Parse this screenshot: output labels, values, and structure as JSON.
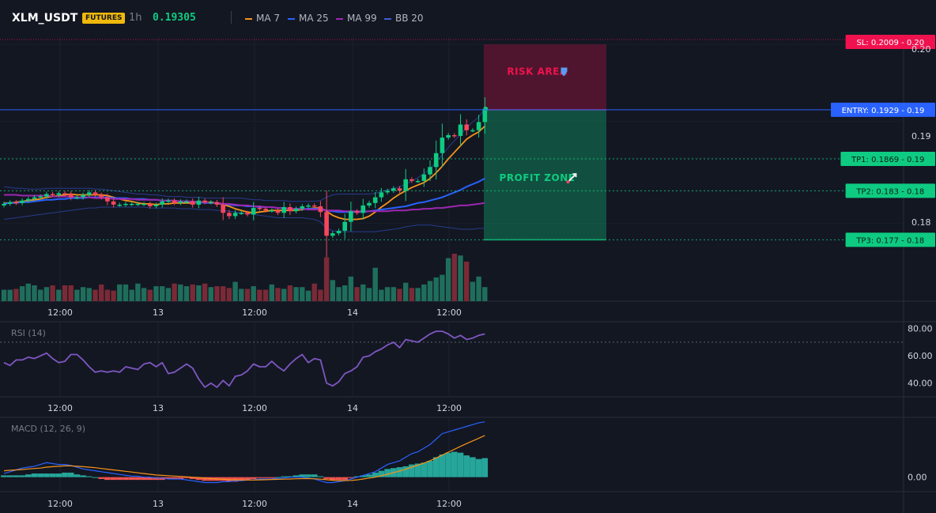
{
  "header": {
    "symbol": "XLM_USDT",
    "badge": "FUTURES",
    "timeframe": "1h",
    "last_price": "0.19305"
  },
  "legend": [
    {
      "name": "MA 7",
      "color": "#f7931a"
    },
    {
      "name": "MA 25",
      "color": "#2962ff"
    },
    {
      "name": "MA 99",
      "color": "#9c27b0"
    },
    {
      "name": "BB 20",
      "color": "#1e3a8a"
    }
  ],
  "colors": {
    "up": "#0ecb81",
    "down": "#f6465d",
    "entry": "#2962ff",
    "sl": "#f0124f",
    "tp": "#0ecb81",
    "rsi": "#7e57c2",
    "macd": "#2962ff",
    "signal": "#f7931a",
    "hist_up": "#26a69a",
    "hist_down": "#ef5350"
  },
  "chart_data": [
    {
      "type": "candlestick",
      "title": "XLM_USDT",
      "x_ticks": [
        "12:00",
        "13",
        "12:00",
        "14",
        "12:00"
      ],
      "y_ticks": [
        "0.20",
        "0.19",
        "0.19",
        "0.18",
        "0.18"
      ],
      "y_tick_values": [
        0.2009,
        0.1915,
        0.187,
        0.183,
        0.179
      ],
      "ylim": [
        0.1753,
        0.2012
      ],
      "levels": [
        {
          "label": "SL: 0.2009",
          "tick": "0.20",
          "value": 0.2009,
          "kind": "sl"
        },
        {
          "label": "ENTRY: 0.1929",
          "tick": "0.19",
          "value": 0.1929,
          "kind": "entry"
        },
        {
          "label": "TP1: 0.1869",
          "tick": "0.19",
          "value": 0.1869,
          "kind": "tp"
        },
        {
          "label": "TP2: 0.183",
          "tick": "0.18",
          "value": 0.183,
          "kind": "tp"
        },
        {
          "label": "TP3: 0.177",
          "tick": "0.18",
          "value": 0.177,
          "kind": "tp"
        }
      ],
      "zones": [
        {
          "label": "RISK AREA",
          "icon": "shield-icon",
          "from": 0.1929,
          "to": 0.2009,
          "color": "#f0124f"
        },
        {
          "label": "PROFIT ZONE",
          "icon": "rocket-icon",
          "from": 0.177,
          "to": 0.1929,
          "color": "#0ecb81"
        }
      ],
      "close": [
        0.1814,
        0.1816,
        0.1815,
        0.1818,
        0.182,
        0.1822,
        0.1823,
        0.1826,
        0.1825,
        0.1827,
        0.1826,
        0.1822,
        0.1822,
        0.1825,
        0.1828,
        0.1825,
        0.1822,
        0.1817,
        0.1813,
        0.1813,
        0.1814,
        0.1814,
        0.1814,
        0.1814,
        0.1811,
        0.1813,
        0.1817,
        0.1818,
        0.1815,
        0.1817,
        0.1817,
        0.1813,
        0.1818,
        0.1816,
        0.1816,
        0.1813,
        0.1803,
        0.1799,
        0.1803,
        0.1803,
        0.1801,
        0.1809,
        0.1808,
        0.1806,
        0.1806,
        0.1803,
        0.181,
        0.1805,
        0.1808,
        0.1811,
        0.1812,
        0.1811,
        0.1804,
        0.1775,
        0.1778,
        0.1781,
        0.1792,
        0.1805,
        0.1803,
        0.1812,
        0.1815,
        0.1822,
        0.1828,
        0.183,
        0.1833,
        0.183,
        0.1844,
        0.1842,
        0.1842,
        0.185,
        0.1859,
        0.1876,
        0.1895,
        0.1898,
        0.1897,
        0.1911,
        0.1904,
        0.1904,
        0.1914,
        0.193
      ],
      "volume": [
        0.13,
        0.13,
        0.14,
        0.17,
        0.2,
        0.18,
        0.13,
        0.16,
        0.18,
        0.13,
        0.18,
        0.18,
        0.13,
        0.16,
        0.15,
        0.13,
        0.19,
        0.13,
        0.12,
        0.19,
        0.19,
        0.13,
        0.2,
        0.15,
        0.13,
        0.17,
        0.17,
        0.15,
        0.2,
        0.19,
        0.17,
        0.19,
        0.18,
        0.2,
        0.16,
        0.17,
        0.17,
        0.15,
        0.22,
        0.14,
        0.14,
        0.17,
        0.13,
        0.13,
        0.19,
        0.15,
        0.14,
        0.18,
        0.16,
        0.16,
        0.12,
        0.2,
        0.13,
        0.5,
        0.24,
        0.16,
        0.18,
        0.28,
        0.16,
        0.19,
        0.15,
        0.38,
        0.13,
        0.16,
        0.16,
        0.14,
        0.21,
        0.15,
        0.15,
        0.19,
        0.23,
        0.27,
        0.3,
        0.49,
        0.54,
        0.52,
        0.45,
        0.22,
        0.28,
        0.16
      ],
      "series": [
        {
          "name": "MA 7",
          "values": [
            0.1815,
            0.1815,
            0.1816,
            0.1817,
            0.1818,
            0.1819,
            0.182,
            0.1822,
            0.1823,
            0.1824,
            0.1825,
            0.1826,
            0.1825,
            0.1825,
            0.1825,
            0.1825,
            0.1825,
            0.1824,
            0.1822,
            0.182,
            0.1818,
            0.1817,
            0.1815,
            0.1814,
            0.1814,
            0.1813,
            0.1814,
            0.1814,
            0.1815,
            0.1815,
            0.1815,
            0.1815,
            0.1816,
            0.1816,
            0.1816,
            0.1815,
            0.1813,
            0.1811,
            0.1808,
            0.1806,
            0.1804,
            0.1803,
            0.1804,
            0.1805,
            0.1806,
            0.1806,
            0.1806,
            0.1806,
            0.1806,
            0.1807,
            0.1808,
            0.1809,
            0.1809,
            0.1805,
            0.18,
            0.1797,
            0.1795,
            0.1795,
            0.1795,
            0.1796,
            0.1799,
            0.1804,
            0.181,
            0.1815,
            0.1821,
            0.1826,
            0.183,
            0.1834,
            0.1837,
            0.184,
            0.1845,
            0.1852,
            0.186,
            0.1869,
            0.1877,
            0.1885,
            0.1893,
            0.1898,
            0.1902,
            0.1909
          ]
        },
        {
          "name": "MA 25",
          "values": [
            0.1814,
            0.1815,
            0.1815,
            0.1816,
            0.1816,
            0.1817,
            0.1818,
            0.1819,
            0.1819,
            0.182,
            0.182,
            0.1821,
            0.1821,
            0.1821,
            0.1822,
            0.1822,
            0.1822,
            0.1822,
            0.1821,
            0.1821,
            0.1821,
            0.182,
            0.182,
            0.182,
            0.1819,
            0.1819,
            0.1818,
            0.1818,
            0.1818,
            0.1817,
            0.1817,
            0.1816,
            0.1816,
            0.1815,
            0.1815,
            0.1815,
            0.1814,
            0.1813,
            0.1812,
            0.1812,
            0.1811,
            0.1811,
            0.181,
            0.181,
            0.181,
            0.1809,
            0.1809,
            0.1808,
            0.1808,
            0.1808,
            0.1808,
            0.1808,
            0.1808,
            0.1806,
            0.1805,
            0.1804,
            0.1804,
            0.1804,
            0.1804,
            0.1804,
            0.1805,
            0.1806,
            0.1807,
            0.1808,
            0.1809,
            0.181,
            0.1811,
            0.1813,
            0.1815,
            0.1816,
            0.1818,
            0.182,
            0.1822,
            0.1825,
            0.1828,
            0.1831,
            0.1835,
            0.1838,
            0.1841,
            0.1845
          ]
        },
        {
          "name": "MA 99",
          "values": [
            0.1825,
            0.1825,
            0.1825,
            0.1824,
            0.1824,
            0.1824,
            0.1824,
            0.1824,
            0.1823,
            0.1823,
            0.1823,
            0.1823,
            0.1822,
            0.1822,
            0.1822,
            0.1821,
            0.1821,
            0.1821,
            0.182,
            0.182,
            0.182,
            0.182,
            0.1819,
            0.1819,
            0.1819,
            0.1819,
            0.1818,
            0.1818,
            0.1818,
            0.1817,
            0.1817,
            0.1817,
            0.1816,
            0.1816,
            0.1815,
            0.1815,
            0.1814,
            0.1814,
            0.1813,
            0.1812,
            0.1812,
            0.1811,
            0.1811,
            0.181,
            0.181,
            0.1809,
            0.1809,
            0.1808,
            0.1808,
            0.1808,
            0.1807,
            0.1807,
            0.1807,
            0.1806,
            0.1806,
            0.1806,
            0.1805,
            0.1805,
            0.1805,
            0.1805,
            0.1805,
            0.1805,
            0.1805,
            0.1805,
            0.1806,
            0.1806,
            0.1806,
            0.1807,
            0.1807,
            0.1808,
            0.1808,
            0.1809,
            0.1809,
            0.181,
            0.1811,
            0.1812,
            0.1812,
            0.1813,
            0.1814,
            0.1815
          ]
        },
        {
          "name": "BB 20 upper",
          "values": [
            0.1835,
            0.1834,
            0.1833,
            0.1833,
            0.1832,
            0.1832,
            0.1832,
            0.1833,
            0.1833,
            0.1833,
            0.1833,
            0.1833,
            0.1833,
            0.1833,
            0.1833,
            0.1832,
            0.1832,
            0.1831,
            0.183,
            0.1829,
            0.1828,
            0.1827,
            0.1826,
            0.1826,
            0.1825,
            0.1825,
            0.1824,
            0.1823,
            0.1823,
            0.1823,
            0.1822,
            0.1822,
            0.1822,
            0.1821,
            0.1821,
            0.1821,
            0.1821,
            0.1821,
            0.1821,
            0.1821,
            0.182,
            0.1819,
            0.1819,
            0.1818,
            0.1818,
            0.1818,
            0.1818,
            0.1817,
            0.1817,
            0.1817,
            0.1817,
            0.1817,
            0.1818,
            0.1822,
            0.1825,
            0.1826,
            0.1826,
            0.1826,
            0.1826,
            0.1826,
            0.1826,
            0.1827,
            0.1829,
            0.1831,
            0.1833,
            0.1835,
            0.1838,
            0.1842,
            0.1846,
            0.1851,
            0.1857,
            0.1865,
            0.1874,
            0.1883,
            0.1891,
            0.1899,
            0.1907,
            0.1914,
            0.192,
            0.1931
          ]
        },
        {
          "name": "BB 20 lower",
          "values": [
            0.1795,
            0.1796,
            0.1797,
            0.1798,
            0.1799,
            0.18,
            0.1801,
            0.1802,
            0.1803,
            0.1804,
            0.1805,
            0.1806,
            0.1807,
            0.1808,
            0.1809,
            0.1809,
            0.181,
            0.181,
            0.181,
            0.181,
            0.181,
            0.181,
            0.181,
            0.181,
            0.1809,
            0.1809,
            0.1809,
            0.1809,
            0.1809,
            0.1808,
            0.1808,
            0.1808,
            0.1807,
            0.1807,
            0.1807,
            0.1806,
            0.1806,
            0.1805,
            0.1804,
            0.1803,
            0.1802,
            0.1801,
            0.18,
            0.1799,
            0.1798,
            0.1797,
            0.1797,
            0.1797,
            0.1797,
            0.1797,
            0.1796,
            0.1795,
            0.1792,
            0.1784,
            0.1781,
            0.178,
            0.178,
            0.178,
            0.178,
            0.178,
            0.178,
            0.178,
            0.1781,
            0.1782,
            0.1783,
            0.1784,
            0.1786,
            0.1787,
            0.1788,
            0.1788,
            0.1788,
            0.1787,
            0.1786,
            0.1785,
            0.1784,
            0.1783,
            0.1783,
            0.1783,
            0.1784,
            0.1784
          ]
        }
      ]
    },
    {
      "type": "line",
      "title": "RSI (14)",
      "x_ticks": [
        "12:00",
        "13",
        "12:00",
        "14",
        "12:00"
      ],
      "y_ticks": [
        "80.00",
        "60.00",
        "40.00"
      ],
      "y_tick_values": [
        80,
        60,
        40
      ],
      "ylim": [
        30,
        85
      ],
      "overbought": 70,
      "series": [
        {
          "name": "RSI (14)",
          "values": [
            55,
            53,
            57,
            57,
            59,
            58,
            60,
            62,
            58,
            55,
            56,
            61,
            61,
            57,
            52,
            48,
            49,
            48,
            49,
            48,
            52,
            51,
            50,
            54,
            55,
            52,
            55,
            47,
            48,
            51,
            54,
            51,
            43,
            37,
            40,
            37,
            42,
            38,
            45,
            46,
            49,
            54,
            52,
            52,
            56,
            52,
            49,
            54,
            58,
            61,
            55,
            58,
            57,
            40,
            38,
            41,
            47,
            49,
            52,
            59,
            60,
            63,
            65,
            68,
            70,
            66,
            72,
            71,
            70,
            73,
            76,
            78,
            78,
            76,
            73,
            75,
            72,
            73,
            75,
            76
          ]
        }
      ]
    },
    {
      "type": "bar",
      "title": "MACD (12, 26, 9)",
      "x_ticks": [
        "12:00",
        "13",
        "12:00",
        "14",
        "12:00"
      ],
      "y_ticks": [
        "0.00"
      ],
      "y_tick_values": [
        0
      ],
      "ylim": [
        -0.8,
        3.3
      ],
      "histogram": [
        0.1,
        0.1,
        0.1,
        0.1,
        0.15,
        0.2,
        0.2,
        0.2,
        0.2,
        0.2,
        0.25,
        0.25,
        0.15,
        0.1,
        0.05,
        0.0,
        -0.1,
        -0.15,
        -0.15,
        -0.15,
        -0.15,
        -0.15,
        -0.15,
        -0.15,
        -0.15,
        -0.15,
        -0.15,
        -0.1,
        -0.1,
        -0.1,
        -0.05,
        -0.1,
        -0.15,
        -0.2,
        -0.2,
        -0.2,
        -0.2,
        -0.25,
        -0.25,
        -0.2,
        -0.15,
        -0.1,
        -0.05,
        -0.05,
        -0.05,
        0.0,
        0.05,
        0.05,
        0.1,
        0.15,
        0.15,
        0.15,
        0.05,
        -0.1,
        -0.15,
        -0.15,
        -0.15,
        -0.05,
        0.05,
        0.1,
        0.15,
        0.25,
        0.35,
        0.45,
        0.5,
        0.55,
        0.6,
        0.7,
        0.75,
        0.8,
        0.9,
        1.1,
        1.25,
        1.35,
        1.4,
        1.35,
        1.2,
        1.1,
        1.0,
        1.05
      ],
      "series": [
        {
          "name": "MACD",
          "values": [
            0.2,
            0.3,
            0.4,
            0.5,
            0.55,
            0.6,
            0.7,
            0.8,
            0.75,
            0.7,
            0.7,
            0.65,
            0.55,
            0.45,
            0.4,
            0.35,
            0.3,
            0.25,
            0.2,
            0.15,
            0.1,
            0.05,
            0.05,
            0.0,
            0.0,
            -0.05,
            -0.05,
            -0.1,
            -0.1,
            -0.1,
            -0.15,
            -0.2,
            -0.25,
            -0.3,
            -0.3,
            -0.3,
            -0.25,
            -0.25,
            -0.2,
            -0.2,
            -0.15,
            -0.15,
            -0.1,
            -0.1,
            -0.1,
            -0.05,
            -0.05,
            0.0,
            0.0,
            0.0,
            -0.05,
            -0.1,
            -0.2,
            -0.3,
            -0.3,
            -0.25,
            -0.2,
            -0.1,
            0.0,
            0.1,
            0.2,
            0.3,
            0.5,
            0.7,
            0.8,
            0.9,
            1.1,
            1.3,
            1.4,
            1.6,
            1.8,
            2.1,
            2.4,
            2.5,
            2.6,
            2.7,
            2.8,
            2.9,
            3.0,
            3.05
          ]
        },
        {
          "name": "Signal",
          "values": [
            0.35,
            0.38,
            0.4,
            0.42,
            0.45,
            0.48,
            0.5,
            0.55,
            0.58,
            0.6,
            0.62,
            0.62,
            0.6,
            0.58,
            0.55,
            0.52,
            0.48,
            0.44,
            0.4,
            0.36,
            0.32,
            0.28,
            0.24,
            0.2,
            0.16,
            0.12,
            0.1,
            0.08,
            0.06,
            0.04,
            0.02,
            0.0,
            -0.02,
            -0.05,
            -0.08,
            -0.1,
            -0.12,
            -0.14,
            -0.15,
            -0.16,
            -0.16,
            -0.16,
            -0.15,
            -0.14,
            -0.13,
            -0.12,
            -0.11,
            -0.1,
            -0.09,
            -0.08,
            -0.08,
            -0.09,
            -0.11,
            -0.14,
            -0.17,
            -0.19,
            -0.19,
            -0.18,
            -0.15,
            -0.1,
            -0.05,
            0.0,
            0.08,
            0.16,
            0.25,
            0.34,
            0.44,
            0.55,
            0.66,
            0.78,
            0.91,
            1.06,
            1.22,
            1.38,
            1.54,
            1.7,
            1.85,
            2.0,
            2.15,
            2.3
          ]
        }
      ]
    }
  ]
}
